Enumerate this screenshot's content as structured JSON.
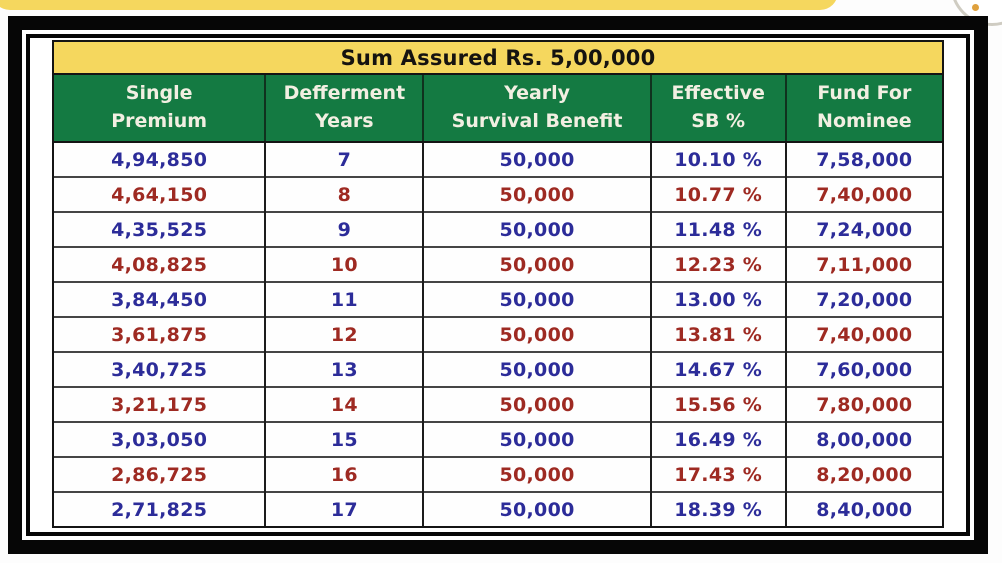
{
  "page": {
    "background": "#fdfdfd"
  },
  "decor": {
    "top_banner_color": "#f5d75e",
    "corner_circle_border": "#cfccc2",
    "corner_dot_color": "#dfa13d"
  },
  "colors": {
    "title_bg": "#f5d75e",
    "header_bg": "#147a42",
    "header_text": "#f2efe2",
    "odd_row_text": "#2c2c99",
    "even_row_text": "#9e2a22",
    "frame": "#060606"
  },
  "table": {
    "title": "Sum Assured Rs. 5,00,000",
    "columns": [
      {
        "line1": "Single",
        "line2": "Premium"
      },
      {
        "line1": "Defferment",
        "line2": "Years"
      },
      {
        "line1": "Yearly",
        "line2": "Survival Benefit"
      },
      {
        "line1": "Effective",
        "line2": "SB %"
      },
      {
        "line1": "Fund For",
        "line2": "Nominee"
      }
    ],
    "rows": [
      [
        "4,94,850",
        "7",
        "50,000",
        "10.10 %",
        "7,58,000"
      ],
      [
        "4,64,150",
        "8",
        "50,000",
        "10.77 %",
        "7,40,000"
      ],
      [
        "4,35,525",
        "9",
        "50,000",
        "11.48 %",
        "7,24,000"
      ],
      [
        "4,08,825",
        "10",
        "50,000",
        "12.23 %",
        "7,11,000"
      ],
      [
        "3,84,450",
        "11",
        "50,000",
        "13.00 %",
        "7,20,000"
      ],
      [
        "3,61,875",
        "12",
        "50,000",
        "13.81 %",
        "7,40,000"
      ],
      [
        "3,40,725",
        "13",
        "50,000",
        "14.67 %",
        "7,60,000"
      ],
      [
        "3,21,175",
        "14",
        "50,000",
        "15.56 %",
        "7,80,000"
      ],
      [
        "3,03,050",
        "15",
        "50,000",
        "16.49 %",
        "8,00,000"
      ],
      [
        "2,86,725",
        "16",
        "50,000",
        "17.43 %",
        "8,20,000"
      ],
      [
        "2,71,825",
        "17",
        "50,000",
        "18.39 %",
        "8,40,000"
      ]
    ]
  },
  "chart_data": {
    "type": "table",
    "title": "Sum Assured Rs. 5,00,000",
    "columns": [
      "Single Premium",
      "Defferment Years",
      "Yearly Survival Benefit",
      "Effective SB %",
      "Fund For Nominee"
    ],
    "rows": [
      [
        "4,94,850",
        7,
        "50,000",
        "10.10 %",
        "7,58,000"
      ],
      [
        "4,64,150",
        8,
        "50,000",
        "10.77 %",
        "7,40,000"
      ],
      [
        "4,35,525",
        9,
        "50,000",
        "11.48 %",
        "7,24,000"
      ],
      [
        "4,08,825",
        10,
        "50,000",
        "12.23 %",
        "7,11,000"
      ],
      [
        "3,84,450",
        11,
        "50,000",
        "13.00 %",
        "7,20,000"
      ],
      [
        "3,61,875",
        12,
        "50,000",
        "13.81 %",
        "7,40,000"
      ],
      [
        "3,40,725",
        13,
        "50,000",
        "14.67 %",
        "7,60,000"
      ],
      [
        "3,21,175",
        14,
        "50,000",
        "15.56 %",
        "7,80,000"
      ],
      [
        "3,03,050",
        15,
        "50,000",
        "16.49 %",
        "8,00,000"
      ],
      [
        "2,86,725",
        16,
        "50,000",
        "17.43 %",
        "8,20,000"
      ],
      [
        "2,71,825",
        17,
        "50,000",
        "18.39 %",
        "8,40,000"
      ]
    ]
  }
}
